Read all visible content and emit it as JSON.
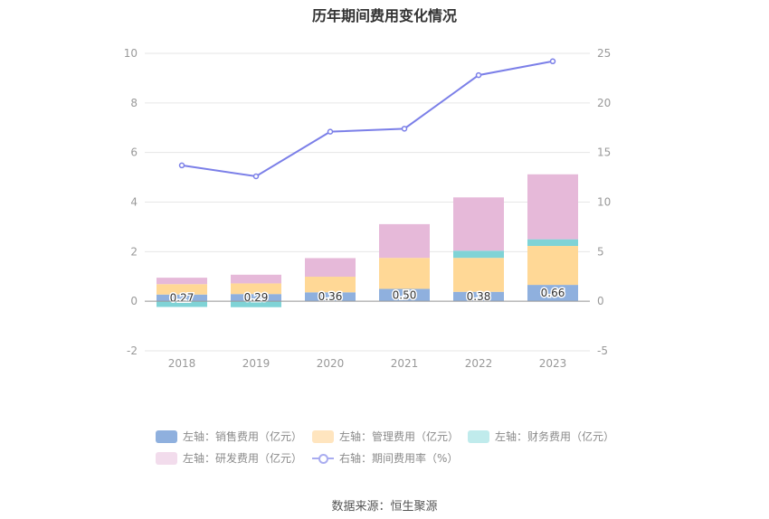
{
  "chart_data": {
    "type": "bar",
    "title": "历年期间费用变化情况",
    "categories": [
      "2018",
      "2019",
      "2020",
      "2021",
      "2022",
      "2023"
    ],
    "left_axis": {
      "min": -2,
      "max": 10,
      "ticks": [
        "-2",
        "0",
        "2",
        "4",
        "6",
        "8",
        "10"
      ]
    },
    "right_axis": {
      "min": -5,
      "max": 25,
      "ticks": [
        "-5",
        "0",
        "5",
        "10",
        "15",
        "20",
        "25"
      ]
    },
    "series": [
      {
        "name": "左轴：销售费用（亿元）",
        "axis": "left",
        "kind": "bar",
        "color": "#8fb0de",
        "legend_color": "#8fb0de",
        "values": [
          0.27,
          0.29,
          0.36,
          0.5,
          0.38,
          0.66
        ],
        "labels": [
          "0.27",
          "0.29",
          "0.36",
          "0.50",
          "0.38",
          "0.66"
        ]
      },
      {
        "name": "左轴：管理费用（亿元）",
        "axis": "left",
        "kind": "bar",
        "color": "#ffd896",
        "legend_color": "#ffe5bf",
        "values": [
          0.42,
          0.43,
          0.63,
          1.25,
          1.37,
          1.57
        ]
      },
      {
        "name": "左轴：财务费用（亿元）",
        "axis": "left",
        "kind": "bar",
        "color": "#7fd3d6",
        "legend_color": "#c0ebec",
        "values": [
          -0.23,
          -0.24,
          0.0,
          0.0,
          0.29,
          0.27
        ]
      },
      {
        "name": "左轴：研发费用（亿元）",
        "axis": "left",
        "kind": "bar",
        "color": "#e6b9d9",
        "legend_color": "#f2dcec",
        "values": [
          0.26,
          0.35,
          0.75,
          1.36,
          2.15,
          2.62
        ]
      },
      {
        "name": "右轴：期间费用率（%）",
        "axis": "right",
        "kind": "line",
        "color": "#7b7fe8",
        "legend_color": "#a9acf0",
        "values": [
          13.7,
          12.6,
          17.1,
          17.4,
          22.8,
          24.2
        ]
      }
    ],
    "grid": true,
    "legend_position": "bottom"
  },
  "source": "数据来源：恒生聚源"
}
